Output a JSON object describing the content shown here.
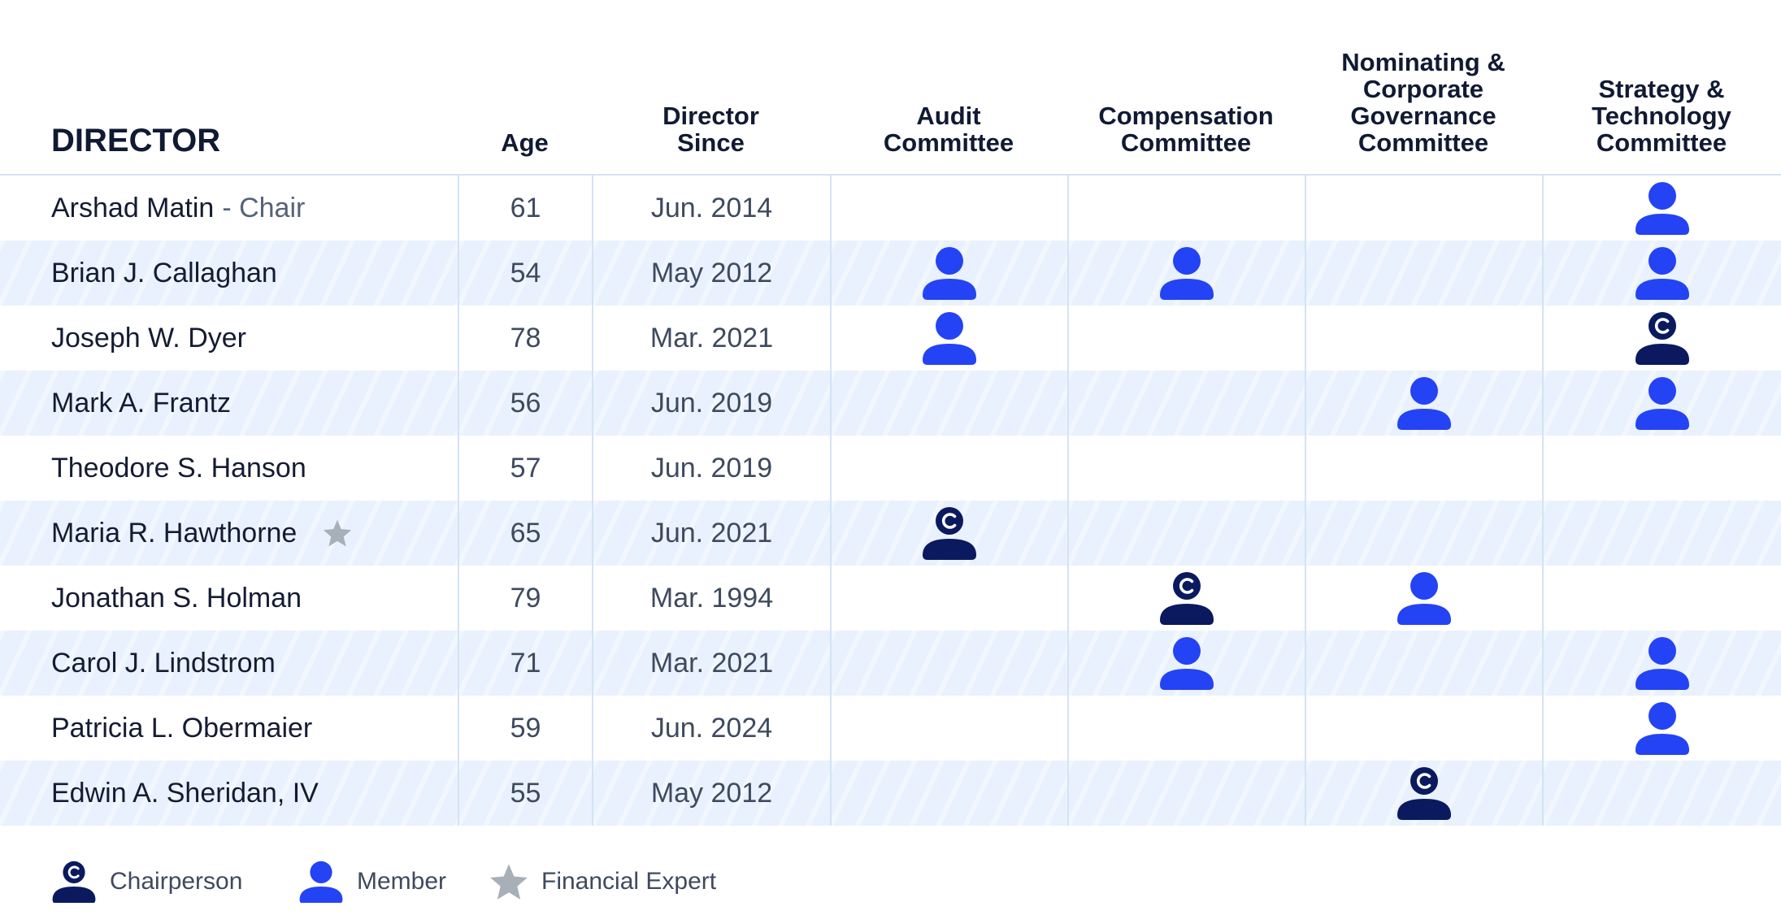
{
  "header": {
    "columns": [
      "DIRECTOR",
      "Age",
      "Director\nSince",
      "Audit\nCommittee",
      "Compensation\nCommittee",
      "Nominating &\nCorporate\nGovernance\nCommittee",
      "Strategy &\nTechnology\nCommittee"
    ]
  },
  "rows": [
    {
      "name": "Arshad Matin",
      "role": "- Chair",
      "age": 61,
      "since": "Jun. 2014",
      "committees": [
        null,
        null,
        null,
        "Member"
      ]
    },
    {
      "name": "Brian J. Callaghan",
      "age": 54,
      "since": "May 2012",
      "committees": [
        "Member",
        "Member",
        null,
        "Member"
      ]
    },
    {
      "name": "Joseph W. Dyer",
      "age": 78,
      "since": "Mar. 2021",
      "committees": [
        "Member",
        null,
        null,
        "Chairperson"
      ]
    },
    {
      "name": "Mark A. Frantz",
      "age": 56,
      "since": "Jun. 2019",
      "committees": [
        null,
        null,
        "Member",
        "Member"
      ]
    },
    {
      "name": "Theodore S. Hanson",
      "age": 57,
      "since": "Jun. 2019",
      "committees": [
        null,
        null,
        null,
        null
      ]
    },
    {
      "name": "Maria R. Hawthorne",
      "financial_expert": true,
      "age": 65,
      "since": "Jun. 2021",
      "committees": [
        "Chairperson",
        null,
        null,
        null
      ]
    },
    {
      "name": "Jonathan S. Holman",
      "age": 79,
      "since": "Mar. 1994",
      "committees": [
        null,
        "Chairperson",
        "Member",
        null
      ]
    },
    {
      "name": "Carol J. Lindstrom",
      "age": 71,
      "since": "Mar. 2021",
      "committees": [
        null,
        "Member",
        null,
        "Member"
      ]
    },
    {
      "name": "Patricia L. Obermaier",
      "age": 59,
      "since": "Jun. 2024",
      "committees": [
        null,
        null,
        null,
        "Member"
      ]
    },
    {
      "name": "Edwin A. Sheridan, IV",
      "age": 55,
      "since": "May 2012",
      "committees": [
        null,
        null,
        "Chairperson",
        null
      ]
    }
  ],
  "legend": [
    {
      "label": "Chairperson"
    },
    {
      "label": "Member"
    },
    {
      "label": "Financial Expert"
    }
  ]
}
